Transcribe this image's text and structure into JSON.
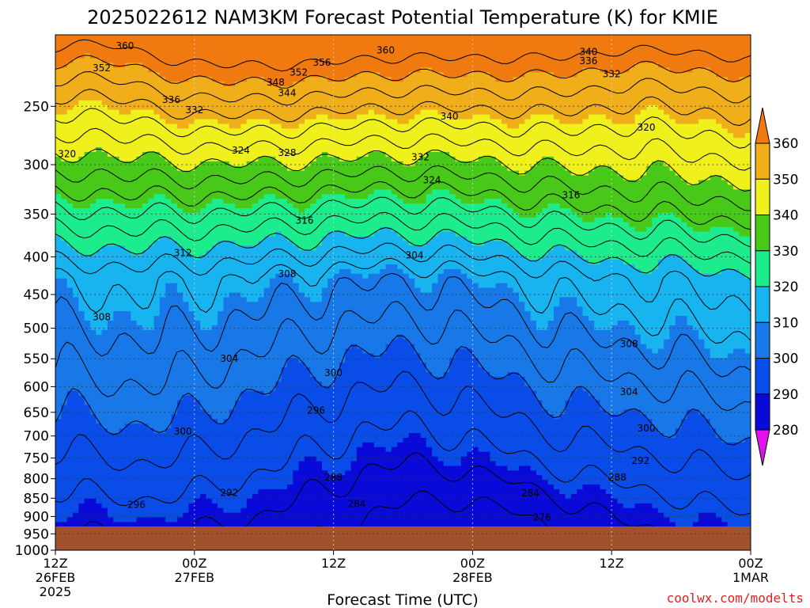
{
  "chart_data": {
    "type": "heatmap",
    "title": "2025022612 NAM3KM Forecast Potential Temperature (K) for KMIE",
    "xlabel": "Forecast Time (UTC)",
    "ylabel": "",
    "y_scale": "log",
    "y_inverted": true,
    "ylim": [
      1000,
      200
    ],
    "xlim": [
      0,
      60
    ],
    "x_ticks": [
      {
        "x": 0,
        "line1": "12Z",
        "line2": "26FEB",
        "line3": "2025"
      },
      {
        "x": 12,
        "line1": "00Z",
        "line2": "27FEB",
        "line3": ""
      },
      {
        "x": 24,
        "line1": "12Z",
        "line2": "",
        "line3": ""
      },
      {
        "x": 36,
        "line1": "00Z",
        "line2": "28FEB",
        "line3": ""
      },
      {
        "x": 48,
        "line1": "12Z",
        "line2": "",
        "line3": ""
      },
      {
        "x": 60,
        "line1": "00Z",
        "line2": "1MAR",
        "line3": ""
      }
    ],
    "y_ticks": [
      250,
      300,
      350,
      400,
      450,
      500,
      550,
      600,
      650,
      700,
      750,
      800,
      850,
      900,
      950,
      1000
    ],
    "colorbar": {
      "levels": [
        280,
        290,
        300,
        310,
        320,
        330,
        340,
        350,
        360
      ],
      "colors": [
        "#e012ec",
        "#8012dc",
        "#0a0ad8",
        "#0a4ce8",
        "#1878e8",
        "#18b4f0",
        "#1cec8c",
        "#48c818",
        "#f0f01c",
        "#f0ae1a",
        "#f07a10"
      ],
      "labels": [
        "280",
        "290",
        "300",
        "310",
        "320",
        "330",
        "340",
        "350",
        "360"
      ]
    },
    "grid": true,
    "surface_color": "#a0522d",
    "contour_interval": 4,
    "contour_labels": [
      {
        "x": 6.0,
        "p": 207,
        "v": "360"
      },
      {
        "x": 28.5,
        "p": 210,
        "v": "360"
      },
      {
        "x": 4.0,
        "p": 222,
        "v": "352"
      },
      {
        "x": 23.0,
        "p": 218,
        "v": "356"
      },
      {
        "x": 21.0,
        "p": 225,
        "v": "352"
      },
      {
        "x": 19.0,
        "p": 232,
        "v": "348"
      },
      {
        "x": 20.0,
        "p": 240,
        "v": "344"
      },
      {
        "x": 10.0,
        "p": 245,
        "v": "336"
      },
      {
        "x": 12.0,
        "p": 253,
        "v": "332"
      },
      {
        "x": 34.0,
        "p": 258,
        "v": "340"
      },
      {
        "x": 46.0,
        "p": 211,
        "v": "340"
      },
      {
        "x": 46.0,
        "p": 217,
        "v": "336"
      },
      {
        "x": 48.0,
        "p": 226,
        "v": "332"
      },
      {
        "x": 51.0,
        "p": 267,
        "v": "320"
      },
      {
        "x": 1.0,
        "p": 290,
        "v": "320"
      },
      {
        "x": 16.0,
        "p": 287,
        "v": "324"
      },
      {
        "x": 20.0,
        "p": 289,
        "v": "328"
      },
      {
        "x": 31.5,
        "p": 293,
        "v": "332"
      },
      {
        "x": 32.5,
        "p": 315,
        "v": "324"
      },
      {
        "x": 44.5,
        "p": 330,
        "v": "316"
      },
      {
        "x": 21.5,
        "p": 357,
        "v": "316"
      },
      {
        "x": 11.0,
        "p": 395,
        "v": "312"
      },
      {
        "x": 20.0,
        "p": 422,
        "v": "308"
      },
      {
        "x": 31.0,
        "p": 398,
        "v": "304"
      },
      {
        "x": 4.0,
        "p": 483,
        "v": "308"
      },
      {
        "x": 49.5,
        "p": 525,
        "v": "308"
      },
      {
        "x": 15.0,
        "p": 550,
        "v": "304"
      },
      {
        "x": 24.0,
        "p": 575,
        "v": "300"
      },
      {
        "x": 49.5,
        "p": 610,
        "v": "304"
      },
      {
        "x": 11.0,
        "p": 690,
        "v": "300"
      },
      {
        "x": 22.5,
        "p": 646,
        "v": "296"
      },
      {
        "x": 51.0,
        "p": 683,
        "v": "300"
      },
      {
        "x": 50.5,
        "p": 756,
        "v": "292"
      },
      {
        "x": 24.0,
        "p": 797,
        "v": "288"
      },
      {
        "x": 48.5,
        "p": 797,
        "v": "288"
      },
      {
        "x": 15.0,
        "p": 836,
        "v": "292"
      },
      {
        "x": 7.0,
        "p": 868,
        "v": "296"
      },
      {
        "x": 26.0,
        "p": 865,
        "v": "284"
      },
      {
        "x": 41.0,
        "p": 837,
        "v": "284"
      },
      {
        "x": 42.0,
        "p": 903,
        "v": "276"
      }
    ]
  },
  "watermark": "coolwx.com/modelts"
}
